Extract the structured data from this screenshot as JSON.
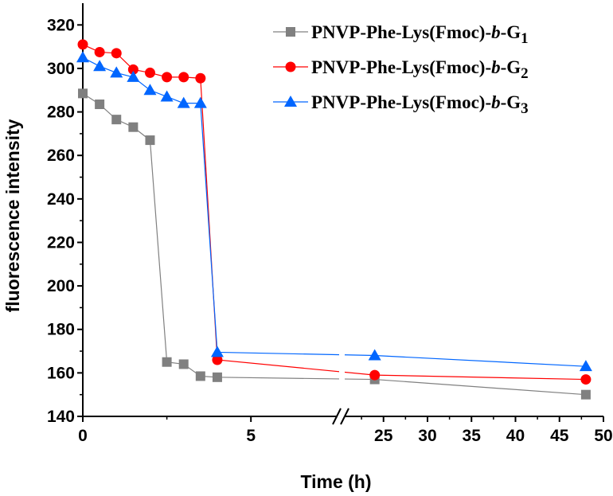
{
  "chart_data": {
    "type": "line",
    "title": "",
    "xlabel": "Time (h)",
    "ylabel": "fluorescence intensity",
    "ylim": [
      140,
      330
    ],
    "x_break": {
      "left_range": [
        0,
        7.6
      ],
      "right_range": [
        20.5,
        50
      ]
    },
    "xticks_left": [
      "0",
      "5"
    ],
    "xticks_right": [
      "25",
      "30",
      "35",
      "40",
      "45",
      "50"
    ],
    "yticks": [
      "140",
      "160",
      "180",
      "200",
      "220",
      "240",
      "260",
      "280",
      "300",
      "320"
    ],
    "legend_position": "top-right",
    "series": [
      {
        "name": "PNVP-Phe-Lys(Fmoc)-b-G1",
        "legend_parts": {
          "prefix": "PNVP-Phe-Lys(Fmoc)-",
          "italic": "b",
          "mid": "-G",
          "sub": "1"
        },
        "color": "#808080",
        "marker": "square",
        "x": [
          0,
          0.5,
          1,
          1.5,
          2,
          2.5,
          3,
          3.5,
          4,
          24,
          48
        ],
        "y": [
          288.5,
          283.5,
          276.5,
          273,
          267,
          165,
          164,
          158.5,
          158,
          157,
          150
        ]
      },
      {
        "name": "PNVP-Phe-Lys(Fmoc)-b-G2",
        "legend_parts": {
          "prefix": "PNVP-Phe-Lys(Fmoc)-",
          "italic": "b",
          "mid": "-G",
          "sub": "2"
        },
        "color": "#ff0000",
        "marker": "circle",
        "x": [
          0,
          0.5,
          1,
          1.5,
          2,
          2.5,
          3,
          3.5,
          4,
          24,
          48
        ],
        "y": [
          311,
          307.5,
          307,
          299.5,
          298,
          296,
          296,
          295.5,
          166,
          159,
          157
        ]
      },
      {
        "name": "PNVP-Phe-Lys(Fmoc)-b-G3",
        "legend_parts": {
          "prefix": "PNVP-Phe-Lys(Fmoc)-",
          "italic": "b",
          "mid": "-G",
          "sub": "3"
        },
        "color": "#0066ff",
        "marker": "triangle",
        "x": [
          0,
          0.5,
          1,
          1.5,
          2,
          2.5,
          3,
          3.5,
          4,
          24,
          48
        ],
        "y": [
          305,
          301,
          298,
          296,
          290,
          287,
          284,
          284,
          169.5,
          168,
          163
        ]
      }
    ]
  }
}
